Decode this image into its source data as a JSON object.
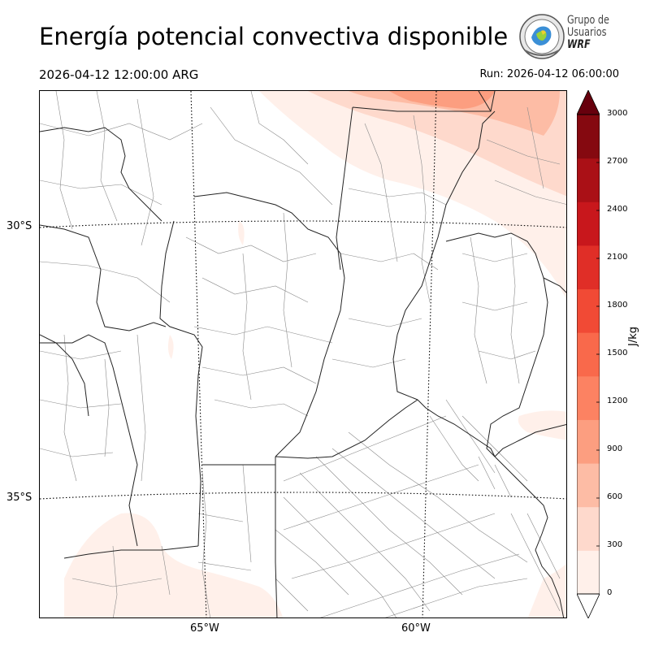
{
  "header": {
    "title": "Energía potencial convectiva disponible",
    "valid_time": "2026-04-12 12:00:00 ARG",
    "run_time": "Run: 2026-04-12 06:00:00"
  },
  "logo": {
    "line1": "Grupo de",
    "line2": "Usuarios",
    "line3": "WRF"
  },
  "map": {
    "lat_labels": [
      "30°S",
      "35°S"
    ],
    "lon_labels": [
      "65°W",
      "60°W"
    ]
  },
  "colorbar": {
    "unit": "J/kg",
    "ticks": [
      "0",
      "300",
      "600",
      "900",
      "1200",
      "1500",
      "1800",
      "2100",
      "2400",
      "2700",
      "3000"
    ],
    "colors": [
      "#fff0ea",
      "#fed9cc",
      "#fdbca5",
      "#fc9e80",
      "#fc8262",
      "#f9694b",
      "#f14a35",
      "#e02e27",
      "#c8171c",
      "#aa1016",
      "#850910"
    ],
    "extend": "both",
    "under_color": "#ffffff",
    "over_color": "#67000d"
  }
}
